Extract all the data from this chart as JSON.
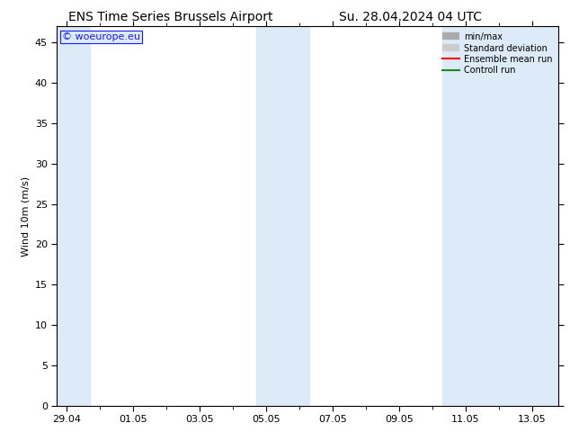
{
  "title_left": "ENS Time Series Brussels Airport",
  "title_right": "Su. 28.04.2024 04 UTC",
  "ylabel": "Wind 10m (m/s)",
  "ylim": [
    0,
    47
  ],
  "yticks": [
    0,
    5,
    10,
    15,
    20,
    25,
    30,
    35,
    40,
    45
  ],
  "xtick_labels": [
    "29.04",
    "01.05",
    "03.05",
    "05.05",
    "07.05",
    "09.05",
    "11.05",
    "13.05"
  ],
  "xtick_positions": [
    0,
    2,
    4,
    6,
    8,
    10,
    12,
    14
  ],
  "xlim": [
    -0.3,
    14.8
  ],
  "watermark": "© woeurope.eu",
  "background_color": "#ffffff",
  "plot_bg_color": "#ffffff",
  "shaded_bands": [
    {
      "x_start": -0.3,
      "x_end": 0.7,
      "color": "#ddeaf7"
    },
    {
      "x_start": 5.7,
      "x_end": 7.3,
      "color": "#ddeaf7"
    },
    {
      "x_start": 11.3,
      "x_end": 14.8,
      "color": "#ddeaf7"
    }
  ],
  "legend_entries": [
    {
      "label": "min/max",
      "color": "#aaaaaa",
      "style": "hline"
    },
    {
      "label": "Standard deviation",
      "color": "#cccccc",
      "style": "hline"
    },
    {
      "label": "Ensemble mean run",
      "color": "#ff0000",
      "style": "line"
    },
    {
      "label": "Controll run",
      "color": "#228822",
      "style": "line"
    }
  ],
  "title_fontsize": 10,
  "axis_fontsize": 8,
  "tick_fontsize": 8,
  "watermark_color": "#1a1aff",
  "watermark_fontsize": 8
}
